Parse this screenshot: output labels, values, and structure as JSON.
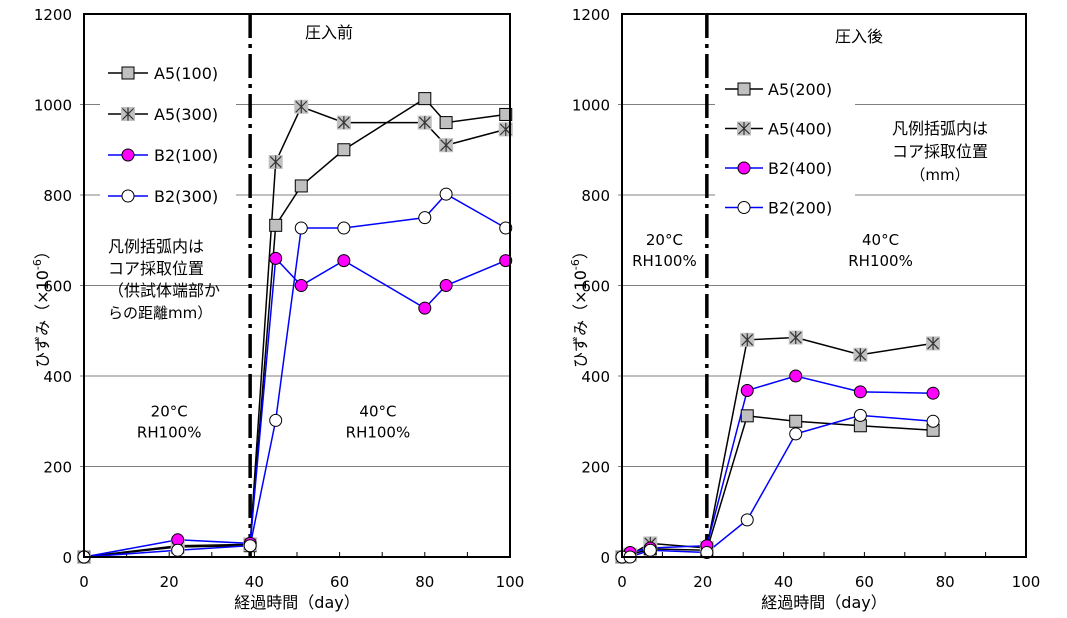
{
  "chart_data": [
    {
      "type": "line",
      "title": "圧入前",
      "xlabel": "経過時間（day）",
      "ylabel": "ひずみ（×10⁻⁶）",
      "ylabel_parts": {
        "main": "ひずみ（×10",
        "sup": "-6",
        "close": "）"
      },
      "xlim": [
        0,
        100
      ],
      "ylim": [
        0,
        1200
      ],
      "xticks": [
        0,
        20,
        40,
        60,
        80,
        100
      ],
      "yticks": [
        0,
        200,
        400,
        600,
        800,
        1000,
        1200
      ],
      "grid": "horizontal",
      "divider_x": 39,
      "legend_position": "top-left",
      "regions": [
        {
          "line1": "20°C",
          "line2": "RH100%",
          "x": 20,
          "y": 310
        },
        {
          "line1": "40°C",
          "line2": "RH100%",
          "x": 69,
          "y": 310
        }
      ],
      "note": [
        "凡例括弧内は",
        "コア採取位置",
        "（供試体端部か",
        "らの距離mm）"
      ],
      "series": [
        {
          "name": "A5(100)",
          "marker": "square",
          "line_color": "#000000",
          "marker_fill": "#c0c0c0",
          "x": [
            0,
            22,
            39,
            45,
            51,
            61,
            80,
            85,
            99
          ],
          "y": [
            0,
            22,
            25,
            733,
            820,
            900,
            1013,
            960,
            978
          ]
        },
        {
          "name": "A5(300)",
          "marker": "star",
          "line_color": "#000000",
          "marker_fill": "#c0c0c0",
          "x": [
            0,
            22,
            39,
            45,
            51,
            61,
            80,
            85,
            99
          ],
          "y": [
            0,
            25,
            28,
            873,
            995,
            960,
            960,
            910,
            945
          ]
        },
        {
          "name": "B2(100)",
          "marker": "circle",
          "line_color": "#0000ff",
          "marker_fill": "#ff00ff",
          "x": [
            0,
            22,
            39,
            45,
            51,
            61,
            80,
            85,
            99
          ],
          "y": [
            0,
            38,
            30,
            660,
            600,
            655,
            550,
            600,
            655
          ]
        },
        {
          "name": "B2(300)",
          "marker": "circle-open",
          "line_color": "#0000ff",
          "marker_fill": "#ffffff",
          "x": [
            0,
            22,
            39,
            45,
            51,
            61,
            80,
            85,
            99
          ],
          "y": [
            0,
            15,
            25,
            302,
            727,
            727,
            750,
            802,
            727
          ]
        }
      ]
    },
    {
      "type": "line",
      "title": "圧入後",
      "xlabel": "経過時間（day）",
      "ylabel": "ひずみ（×10⁻⁶）",
      "ylabel_parts": {
        "main": "ひずみ（×10",
        "sup": "-6",
        "close": "）"
      },
      "xlim": [
        0,
        100
      ],
      "ylim": [
        0,
        1200
      ],
      "xticks": [
        0,
        20,
        40,
        60,
        80,
        100
      ],
      "yticks": [
        0,
        200,
        400,
        600,
        800,
        1000,
        1200
      ],
      "grid": "horizontal",
      "divider_x": 21,
      "legend_position": "top-center",
      "regions": [
        {
          "line1": "20°C",
          "line2": "RH100%",
          "x": 10.5,
          "y": 690
        },
        {
          "line1": "40°C",
          "line2": "RH100%",
          "x": 64,
          "y": 690
        }
      ],
      "note": [
        "凡例括弧内は",
        "コア採取位置",
        "（mm）"
      ],
      "series": [
        {
          "name": "A5(200)",
          "marker": "square",
          "line_color": "#000000",
          "marker_fill": "#c0c0c0",
          "x": [
            0,
            2,
            7,
            21,
            31,
            43,
            59,
            77
          ],
          "y": [
            0,
            5,
            18,
            15,
            312,
            300,
            290,
            280
          ]
        },
        {
          "name": "A5(400)",
          "marker": "star",
          "line_color": "#000000",
          "marker_fill": "#c0c0c0",
          "x": [
            0,
            2,
            7,
            21,
            31,
            43,
            59,
            77
          ],
          "y": [
            0,
            5,
            30,
            20,
            480,
            485,
            447,
            472
          ]
        },
        {
          "name": "B2(400)",
          "marker": "circle",
          "line_color": "#0000ff",
          "marker_fill": "#ff00ff",
          "x": [
            0,
            2,
            7,
            21,
            31,
            43,
            59,
            77
          ],
          "y": [
            0,
            10,
            20,
            25,
            368,
            400,
            365,
            362
          ]
        },
        {
          "name": "B2(200)",
          "marker": "circle-open",
          "line_color": "#0000ff",
          "marker_fill": "#ffffff",
          "x": [
            0,
            2,
            7,
            21,
            31,
            43,
            59,
            77
          ],
          "y": [
            0,
            0,
            15,
            10,
            82,
            272,
            313,
            300
          ]
        }
      ]
    }
  ]
}
